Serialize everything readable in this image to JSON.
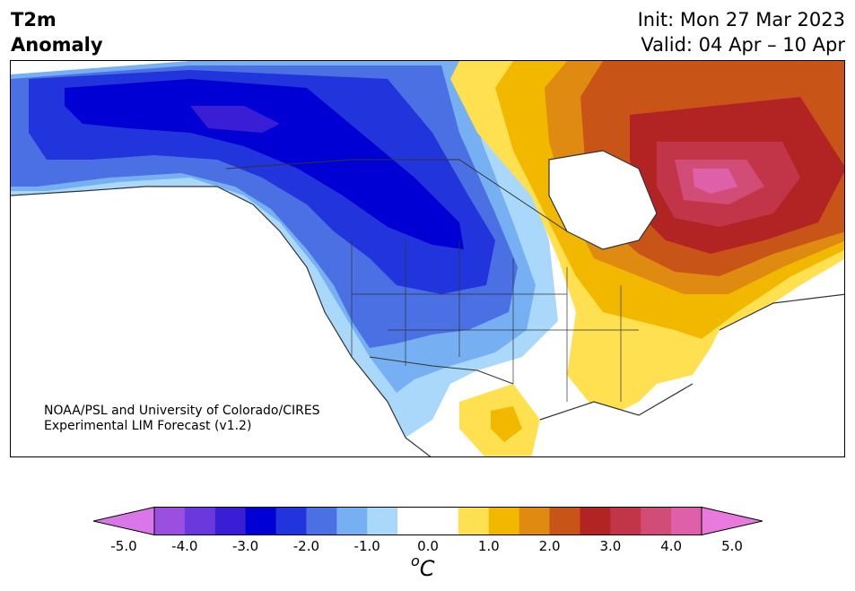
{
  "title": {
    "variable": "T2m",
    "subtitle": "Anomaly",
    "init": "Init: Mon 27 Mar 2023",
    "valid": "Valid: 04 Apr – 10 Apr"
  },
  "credit": {
    "line1": "NOAA/PSL and University of Colorado/CIRES",
    "line2": "Experimental LIM Forecast (v1.2)"
  },
  "colorbar": {
    "ticks": [
      "-5.0",
      "-4.0",
      "-3.0",
      "-2.0",
      "-1.0",
      "0.0",
      "1.0",
      "2.0",
      "3.0",
      "4.0",
      "5.0"
    ],
    "unit_base": "C",
    "unit_sup": "o",
    "under_color": "#d977e8",
    "over_color": "#e87add",
    "colors": [
      "#d977e8",
      "#9b4fe0",
      "#6a38dc",
      "#3a1ed6",
      "#0000d4",
      "#2234dc",
      "#4a70e4",
      "#76b0f2",
      "#aad8fa",
      "#ffffff",
      "#ffffff",
      "#ffe050",
      "#f2b800",
      "#df8a10",
      "#c85418",
      "#b22424",
      "#c23448",
      "#d24c78",
      "#de60a8",
      "#e87add"
    ]
  },
  "map": {
    "region": "North America",
    "sea_color": "#ffffff",
    "coastline_color": "#333333"
  }
}
